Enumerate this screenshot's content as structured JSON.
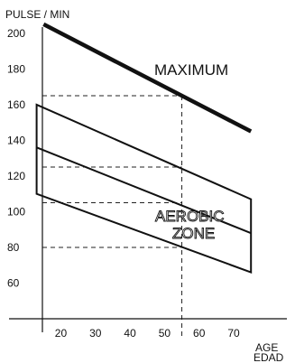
{
  "chart_data": {
    "type": "line",
    "ylabel": "PULSE / MIN",
    "xlabel_lines": [
      "AGE",
      "EDAD"
    ],
    "x_ticks": [
      20,
      30,
      40,
      50,
      60,
      70
    ],
    "y_ticks": [
      60,
      80,
      100,
      120,
      140,
      160,
      180,
      200
    ],
    "xlim": [
      5,
      82
    ],
    "ylim": [
      40,
      208
    ],
    "grid": false,
    "maximum": {
      "name": "MAXIMUM",
      "x": [
        15,
        75
      ],
      "y": [
        205,
        145
      ]
    },
    "aerobic_zone": {
      "name_lines": [
        "AEROBIC",
        "ZONE"
      ],
      "upper": {
        "x": [
          13,
          75
        ],
        "y": [
          160,
          107
        ]
      },
      "mid": {
        "x": [
          13,
          75
        ],
        "y": [
          136,
          88
        ]
      },
      "lower": {
        "x": [
          13,
          75
        ],
        "y": [
          110,
          66
        ]
      }
    },
    "reference_lines": {
      "x": 55,
      "y_values": [
        165,
        125,
        105,
        80
      ]
    }
  }
}
